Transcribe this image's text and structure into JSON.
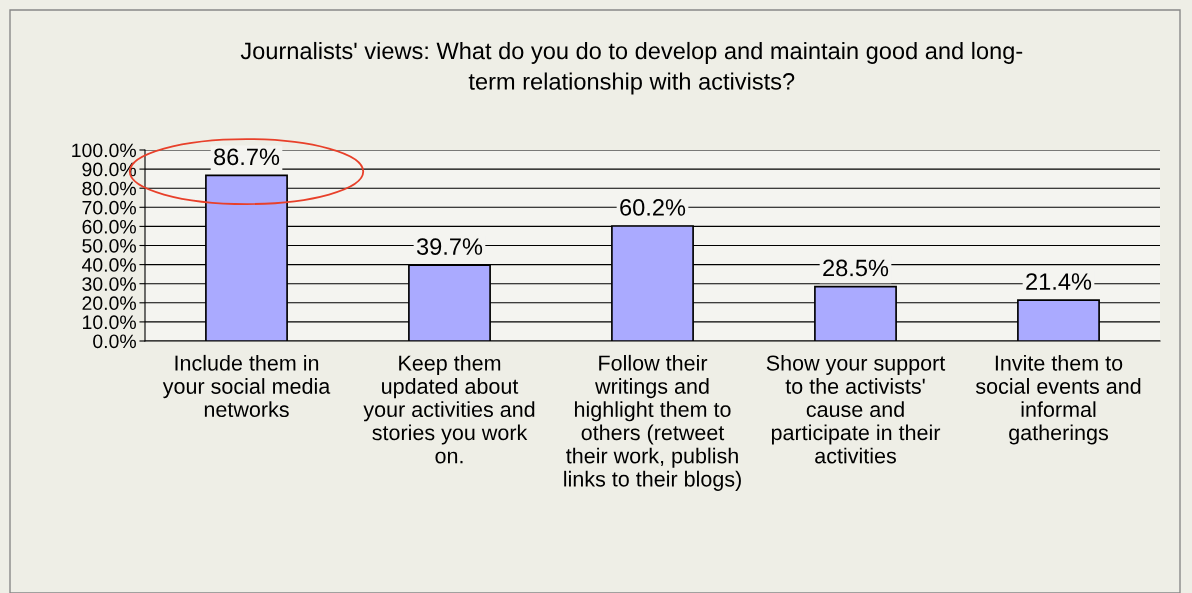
{
  "chart_data": {
    "type": "bar",
    "title": "Journalists' views: What do you do to develop and maintain good and long-\nterm relationship with activists?",
    "categories": [
      "Include them in\nyour social media\nnetworks",
      "Keep them\nupdated about\nyour activities and\nstories you work\non.",
      "Follow their\nwritings and\nhighlight them to\nothers (retweet\ntheir work, publish\nlinks to their blogs)",
      "Show your support\nto the activists'\ncause and\nparticipate in their\nactivities",
      "Invite them to\nsocial events and\ninformal\ngatherings"
    ],
    "values": [
      86.7,
      39.7,
      60.2,
      28.5,
      21.4
    ],
    "color": "#aaaaff",
    "value_labels": [
      "86.7%",
      "39.7%",
      "60.2%",
      "28.5%",
      "21.4%"
    ],
    "ylim": [
      0,
      100
    ],
    "yticks": [
      {
        "value": 0,
        "label": "0.0%"
      },
      {
        "value": 10,
        "label": "10.0%"
      },
      {
        "value": 20,
        "label": "20.0%"
      },
      {
        "value": 30,
        "label": "30.0%"
      },
      {
        "value": 40,
        "label": "40.0%"
      },
      {
        "value": 50,
        "label": "50.0%"
      },
      {
        "value": 60,
        "label": "60.0%"
      },
      {
        "value": 70,
        "label": "70.0%"
      },
      {
        "value": 80,
        "label": "80.0%"
      },
      {
        "value": 90,
        "label": "90.0%"
      },
      {
        "value": 100,
        "label": "100.0%"
      }
    ],
    "grid": "y",
    "legend": false
  }
}
